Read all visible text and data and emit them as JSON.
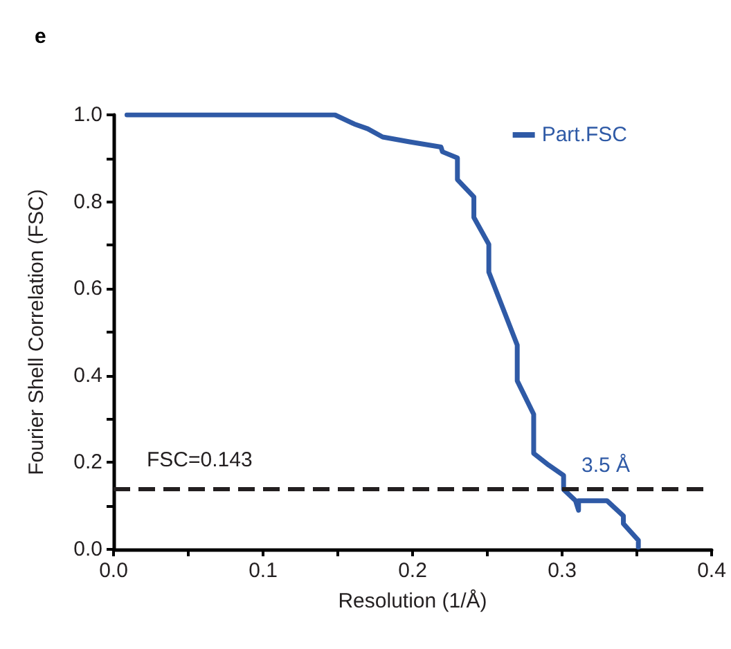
{
  "chart_data": {
    "type": "line",
    "title": "e",
    "xlabel": "Resolution (1/Å)",
    "ylabel": "Fourier Shell Correlation (FSC)",
    "xlim": [
      0,
      0.4
    ],
    "ylim": [
      0,
      1.0
    ],
    "xticks": [
      {
        "value": 0,
        "label": "0.0"
      },
      {
        "value": 0.05,
        "label": null
      },
      {
        "value": 0.1,
        "label": "0.1"
      },
      {
        "value": 0.15,
        "label": null
      },
      {
        "value": 0.2,
        "label": "0.2"
      },
      {
        "value": 0.25,
        "label": null
      },
      {
        "value": 0.3,
        "label": "0.3"
      },
      {
        "value": 0.35,
        "label": null
      },
      {
        "value": 0.4,
        "label": "0.4"
      }
    ],
    "yticks": [
      {
        "value": 0,
        "label": "0.0"
      },
      {
        "value": 0.1,
        "label": null
      },
      {
        "value": 0.2,
        "label": "0.2"
      },
      {
        "value": 0.3,
        "label": null
      },
      {
        "value": 0.4,
        "label": "0.4"
      },
      {
        "value": 0.5,
        "label": null
      },
      {
        "value": 0.6,
        "label": "0.6"
      },
      {
        "value": 0.7,
        "label": null
      },
      {
        "value": 0.8,
        "label": "0.8"
      },
      {
        "value": 0.9,
        "label": null
      },
      {
        "value": 1.0,
        "label": "1.0"
      }
    ],
    "grid": false,
    "legend": "top right",
    "marker": "none",
    "line_style": "solid",
    "series": [
      {
        "name": "Part.FSC",
        "color": "#2f5aa6",
        "x": [
          0.009,
          0.148,
          0.161,
          0.17,
          0.18,
          0.198,
          0.219,
          0.22,
          0.23,
          0.23,
          0.241,
          0.241,
          0.251,
          0.251,
          0.27,
          0.27,
          0.281,
          0.281,
          0.291,
          0.301,
          0.301,
          0.309,
          0.311,
          0.311,
          0.33,
          0.341,
          0.341,
          0.351,
          0.351
        ],
        "values": [
          1.0,
          1.0,
          0.979,
          0.968,
          0.949,
          0.938,
          0.926,
          0.915,
          0.901,
          0.851,
          0.811,
          0.764,
          0.702,
          0.638,
          0.47,
          0.388,
          0.311,
          0.221,
          0.194,
          0.17,
          0.138,
          0.112,
          0.09,
          0.112,
          0.112,
          0.077,
          0.059,
          0.021,
          0.005
        ]
      }
    ],
    "ref_lines": [
      {
        "axis": "y",
        "value": 0.143,
        "label": "FSC=0.143",
        "color": "#231f20",
        "line_style": "dashed"
      }
    ],
    "annotations": [
      {
        "text": "3.5 Å",
        "x": 0.3,
        "y": 0.143
      }
    ]
  }
}
